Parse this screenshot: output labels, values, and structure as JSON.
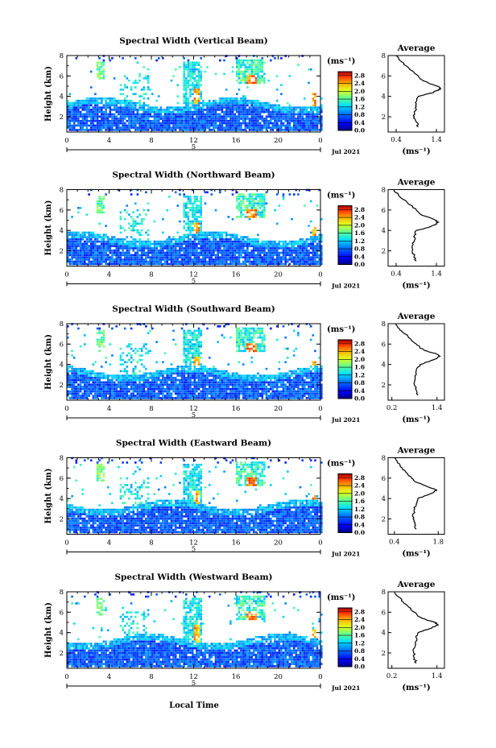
{
  "figure": {
    "x_axis_label": "Local Time",
    "date_label": "Jul 2021",
    "day_marker": "5",
    "colorbar_unit": "(ms⁻¹)",
    "avg_title": "Average",
    "avg_unit": "(ms⁻¹)",
    "height_label": "Height (km)"
  },
  "chart_data": [
    {
      "type": "heatmap",
      "title": "Spectral Width (Vertical Beam)",
      "xlabel": "",
      "ylabel": "Height (km)",
      "x_ticks": [
        "0",
        "4",
        "8",
        "12",
        "16",
        "20",
        "0"
      ],
      "y_ticks": [
        "2",
        "4",
        "6",
        "8"
      ],
      "xlim": [
        0,
        24
      ],
      "ylim": [
        0.5,
        8
      ],
      "colorbar": {
        "ticks": [
          "0.0",
          "0.4",
          "0.8",
          "1.2",
          "1.6",
          "2.0",
          "2.4",
          "2.8"
        ],
        "range": [
          0,
          3.0
        ]
      },
      "average_profile": {
        "title": "Average",
        "x_ticks": [
          "0.4",
          "1.4"
        ],
        "xlim": [
          0.2,
          1.6
        ],
        "ylim": [
          0.5,
          8
        ],
        "height_km": [
          1.0,
          1.5,
          2.0,
          2.5,
          3.0,
          3.5,
          4.0,
          4.3,
          4.6,
          4.8,
          5.0,
          5.3,
          5.6,
          6.0,
          6.5,
          7.0,
          7.5,
          8.0
        ],
        "width": [
          0.95,
          0.9,
          0.85,
          0.85,
          0.9,
          0.9,
          0.95,
          1.25,
          1.45,
          1.5,
          1.42,
          1.2,
          1.05,
          0.95,
          0.8,
          0.65,
          0.5,
          0.4
        ]
      }
    },
    {
      "type": "heatmap",
      "title": "Spectral Width (Northward Beam)",
      "xlabel": "",
      "ylabel": "Height (km)",
      "x_ticks": [
        "0",
        "4",
        "8",
        "12",
        "16",
        "20",
        "0"
      ],
      "y_ticks": [
        "2",
        "4",
        "6",
        "8"
      ],
      "xlim": [
        0,
        24
      ],
      "ylim": [
        0.5,
        8
      ],
      "colorbar": {
        "ticks": [
          "0.0",
          "0.4",
          "0.8",
          "1.2",
          "1.6",
          "2.0",
          "2.4",
          "2.8"
        ],
        "range": [
          0,
          3.0
        ]
      },
      "average_profile": {
        "title": "Average",
        "x_ticks": [
          "0.4",
          "1.4"
        ],
        "xlim": [
          0.2,
          1.6
        ],
        "ylim": [
          0.5,
          8
        ],
        "height_km": [
          1.0,
          1.5,
          2.0,
          2.5,
          3.0,
          3.5,
          4.0,
          4.3,
          4.6,
          4.8,
          5.0,
          5.3,
          5.6,
          6.0,
          6.5,
          7.0,
          7.5,
          8.0
        ],
        "width": [
          0.9,
          0.85,
          0.8,
          0.8,
          0.85,
          0.85,
          0.9,
          1.2,
          1.4,
          1.45,
          1.38,
          1.2,
          1.0,
          0.9,
          0.75,
          0.6,
          0.45,
          0.35
        ]
      }
    },
    {
      "type": "heatmap",
      "title": "Spectral Width (Southward Beam)",
      "xlabel": "",
      "ylabel": "Height (km)",
      "x_ticks": [
        "0",
        "4",
        "8",
        "12",
        "16",
        "20",
        "0"
      ],
      "y_ticks": [
        "2",
        "4",
        "6",
        "8"
      ],
      "xlim": [
        0,
        24
      ],
      "ylim": [
        0.5,
        8
      ],
      "colorbar": {
        "ticks": [
          "0.0",
          "0.4",
          "0.8",
          "1.2",
          "1.6",
          "2.0",
          "2.4",
          "2.8"
        ],
        "range": [
          0,
          3.0
        ]
      },
      "average_profile": {
        "title": "Average",
        "x_ticks": [
          "0.2",
          "1.4"
        ],
        "xlim": [
          0.1,
          1.6
        ],
        "ylim": [
          0.5,
          8
        ],
        "height_km": [
          1.0,
          1.5,
          2.0,
          2.5,
          3.0,
          3.5,
          4.0,
          4.3,
          4.6,
          4.8,
          5.0,
          5.3,
          5.6,
          6.0,
          6.5,
          7.0,
          7.5,
          8.0
        ],
        "width": [
          0.9,
          0.85,
          0.8,
          0.82,
          0.85,
          0.85,
          0.95,
          1.2,
          1.4,
          1.48,
          1.4,
          1.15,
          0.95,
          0.85,
          0.7,
          0.55,
          0.4,
          0.3
        ]
      }
    },
    {
      "type": "heatmap",
      "title": "Spectral Width (Eastward Beam)",
      "xlabel": "",
      "ylabel": "Height (km)",
      "x_ticks": [
        "0",
        "4",
        "8",
        "12",
        "16",
        "20",
        "0"
      ],
      "y_ticks": [
        "2",
        "4",
        "6",
        "8"
      ],
      "xlim": [
        0,
        24
      ],
      "ylim": [
        0.5,
        8
      ],
      "colorbar": {
        "ticks": [
          "0.0",
          "0.4",
          "0.8",
          "1.2",
          "1.6",
          "2.0",
          "2.4",
          "2.8"
        ],
        "range": [
          0,
          3.0
        ]
      },
      "average_profile": {
        "title": "Average",
        "x_ticks": [
          "0.4",
          "1.8"
        ],
        "xlim": [
          0.2,
          2.0
        ],
        "ylim": [
          0.5,
          8
        ],
        "height_km": [
          1.0,
          1.5,
          2.0,
          2.5,
          3.0,
          3.5,
          4.0,
          4.3,
          4.6,
          4.8,
          5.0,
          5.3,
          5.6,
          6.0,
          6.5,
          7.0,
          7.5,
          8.0
        ],
        "width": [
          1.1,
          1.05,
          1.0,
          1.0,
          1.05,
          1.1,
          1.15,
          1.4,
          1.65,
          1.75,
          1.6,
          1.35,
          1.1,
          0.95,
          0.8,
          0.65,
          0.5,
          0.4
        ]
      }
    },
    {
      "type": "heatmap",
      "title": "Spectral Width (Westward Beam)",
      "xlabel": "Local Time",
      "ylabel": "Height (km)",
      "x_ticks": [
        "0",
        "4",
        "8",
        "12",
        "16",
        "20",
        "0"
      ],
      "y_ticks": [
        "2",
        "4",
        "6",
        "8"
      ],
      "xlim": [
        0,
        24
      ],
      "ylim": [
        0.5,
        8
      ],
      "colorbar": {
        "ticks": [
          "0.0",
          "0.4",
          "0.8",
          "1.2",
          "1.6",
          "2.0",
          "2.4",
          "2.8"
        ],
        "range": [
          0,
          3.0
        ]
      },
      "average_profile": {
        "title": "Average",
        "x_ticks": [
          "0.2",
          "1.4"
        ],
        "xlim": [
          0.1,
          1.6
        ],
        "ylim": [
          0.5,
          8
        ],
        "height_km": [
          1.0,
          1.5,
          2.0,
          2.5,
          3.0,
          3.5,
          4.0,
          4.3,
          4.6,
          4.8,
          5.0,
          5.3,
          5.6,
          6.0,
          6.5,
          7.0,
          7.5,
          8.0
        ],
        "width": [
          0.85,
          0.8,
          0.78,
          0.8,
          0.82,
          0.85,
          0.9,
          1.15,
          1.35,
          1.42,
          1.35,
          1.1,
          0.9,
          0.8,
          0.65,
          0.5,
          0.38,
          0.28
        ]
      }
    }
  ]
}
